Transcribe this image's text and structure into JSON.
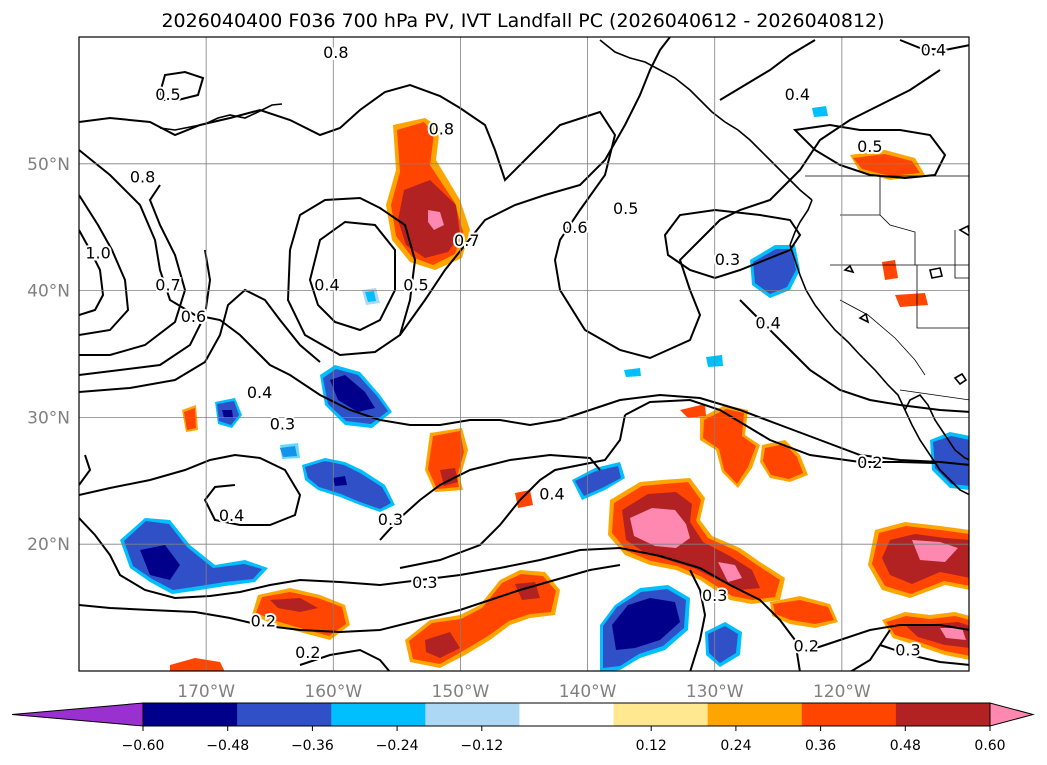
{
  "title": "2026040400 F036 700 hPa PV, IVT Landfall PC (2026040612 - 2026040812)",
  "chart_data": {
    "type": "map",
    "projection": "PlateCarree",
    "lon_range": [
      -180,
      -110
    ],
    "lat_range": [
      10,
      60
    ],
    "lon_ticks": [
      {
        "value": -170,
        "label": "170°W"
      },
      {
        "value": -160,
        "label": "160°W"
      },
      {
        "value": -150,
        "label": "150°W"
      },
      {
        "value": -140,
        "label": "140°W"
      },
      {
        "value": -130,
        "label": "130°W"
      },
      {
        "value": -120,
        "label": "120°W"
      }
    ],
    "lat_ticks": [
      {
        "value": 50,
        "label": "50°N"
      },
      {
        "value": 40,
        "label": "40°N"
      },
      {
        "value": 30,
        "label": "30°N"
      },
      {
        "value": 20,
        "label": "20°N"
      }
    ],
    "grid": true,
    "colorbar": {
      "orientation": "horizontal",
      "extend": "both",
      "levels": [
        -0.72,
        -0.6,
        -0.48,
        -0.36,
        -0.24,
        -0.12,
        0.12,
        0.24,
        0.36,
        0.48,
        0.6,
        0.72
      ],
      "colors": [
        "#9b30d0",
        "#00008b",
        "#3050c8",
        "#00bfff",
        "#add8f5",
        "#ffffff",
        "#ffe890",
        "#ffa500",
        "#ff4500",
        "#b22222",
        "#ff88b0"
      ],
      "under_color": "#9b30d0",
      "over_color": "#ff88b0",
      "tick_labels": [
        {
          "value": -0.6,
          "label": "−0.60"
        },
        {
          "value": -0.48,
          "label": "−0.48"
        },
        {
          "value": -0.36,
          "label": "−0.36"
        },
        {
          "value": -0.24,
          "label": "−0.24"
        },
        {
          "value": -0.12,
          "label": "−0.12"
        },
        {
          "value": 0.12,
          "label": "0.12"
        },
        {
          "value": 0.24,
          "label": "0.24"
        },
        {
          "value": 0.36,
          "label": "0.36"
        },
        {
          "value": 0.48,
          "label": "0.48"
        },
        {
          "value": 0.6,
          "label": "0.60"
        }
      ]
    },
    "contour_labels": [
      {
        "text": "0.8",
        "lon": -159.8,
        "lat": 58.8
      },
      {
        "text": "0.5",
        "lon": -173.0,
        "lat": 55.5
      },
      {
        "text": "0.8",
        "lon": -175.0,
        "lat": 49.0
      },
      {
        "text": "1.0",
        "lon": -178.5,
        "lat": 43.0
      },
      {
        "text": "0.7",
        "lon": -173.0,
        "lat": 40.5
      },
      {
        "text": "0.6",
        "lon": -171.0,
        "lat": 38.0
      },
      {
        "text": "0.8",
        "lon": -151.5,
        "lat": 52.8
      },
      {
        "text": "0.7",
        "lon": -149.5,
        "lat": 44.0
      },
      {
        "text": "0.4",
        "lon": -160.5,
        "lat": 40.5
      },
      {
        "text": "0.5",
        "lon": -153.5,
        "lat": 40.5
      },
      {
        "text": "0.6",
        "lon": -141.0,
        "lat": 45.0
      },
      {
        "text": "0.5",
        "lon": -137.0,
        "lat": 46.5
      },
      {
        "text": "0.3",
        "lon": -129.0,
        "lat": 42.5
      },
      {
        "text": "0.4",
        "lon": -123.5,
        "lat": 55.5
      },
      {
        "text": "0.4",
        "lon": -112.8,
        "lat": 59.0
      },
      {
        "text": "0.5",
        "lon": -117.8,
        "lat": 51.4
      },
      {
        "text": "0.4",
        "lon": -125.8,
        "lat": 37.5
      },
      {
        "text": "0.4",
        "lon": -165.8,
        "lat": 32.0
      },
      {
        "text": "0.3",
        "lon": -164.0,
        "lat": 29.5
      },
      {
        "text": "0.4",
        "lon": -168.0,
        "lat": 22.3
      },
      {
        "text": "0.3",
        "lon": -155.5,
        "lat": 22.0
      },
      {
        "text": "0.4",
        "lon": -142.8,
        "lat": 24.0
      },
      {
        "text": "0.2",
        "lon": -117.8,
        "lat": 26.5
      },
      {
        "text": "0.3",
        "lon": -152.8,
        "lat": 17.0
      },
      {
        "text": "0.2",
        "lon": -165.5,
        "lat": 14.0
      },
      {
        "text": "0.2",
        "lon": -162.0,
        "lat": 11.5
      },
      {
        "text": "0.3",
        "lon": -130.0,
        "lat": 16.0
      },
      {
        "text": "0.2",
        "lon": -122.8,
        "lat": 12.0
      },
      {
        "text": "0.3",
        "lon": -114.8,
        "lat": 11.7
      }
    ]
  }
}
